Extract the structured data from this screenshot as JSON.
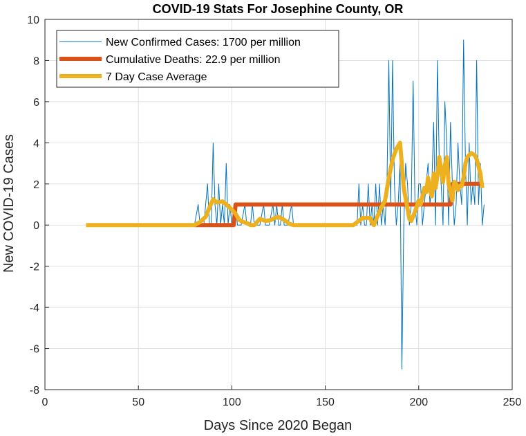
{
  "chart_data": {
    "type": "line",
    "title": "COVID-19 Stats For Josephine County, OR",
    "xlabel": "Days Since 2020 Began",
    "ylabel": "New COVID-19 Cases",
    "xlim": [
      0,
      250
    ],
    "ylim": [
      -8,
      10
    ],
    "xticks": [
      0,
      50,
      100,
      150,
      200,
      250
    ],
    "yticks": [
      -8,
      -6,
      -4,
      -2,
      0,
      2,
      4,
      6,
      8,
      10
    ],
    "grid": true,
    "legend_position": "top-left",
    "series": [
      {
        "name": "New Confirmed Cases: 1700 per million",
        "color": "#0072BD",
        "line": "thin",
        "points": [
          [
            22,
            0
          ],
          [
            80,
            0
          ],
          [
            82,
            1
          ],
          [
            83,
            0
          ],
          [
            85,
            0
          ],
          [
            87,
            2
          ],
          [
            88,
            0
          ],
          [
            89,
            0
          ],
          [
            90,
            4
          ],
          [
            91,
            1
          ],
          [
            92,
            0
          ],
          [
            93,
            2
          ],
          [
            94,
            0
          ],
          [
            95,
            1
          ],
          [
            96,
            0
          ],
          [
            97,
            3
          ],
          [
            98,
            0
          ],
          [
            99,
            1
          ],
          [
            100,
            0
          ],
          [
            101,
            0
          ],
          [
            102,
            1
          ],
          [
            103,
            0
          ],
          [
            105,
            0
          ],
          [
            107,
            1
          ],
          [
            108,
            0
          ],
          [
            110,
            0
          ],
          [
            111,
            1
          ],
          [
            112,
            0
          ],
          [
            115,
            0
          ],
          [
            117,
            1
          ],
          [
            118,
            0
          ],
          [
            120,
            0
          ],
          [
            122,
            1
          ],
          [
            123,
            0
          ],
          [
            124,
            1
          ],
          [
            125,
            0
          ],
          [
            126,
            0
          ],
          [
            127,
            1
          ],
          [
            128,
            0
          ],
          [
            130,
            0
          ],
          [
            132,
            1
          ],
          [
            133,
            0
          ],
          [
            140,
            0
          ],
          [
            150,
            0
          ],
          [
            160,
            0
          ],
          [
            167,
            0
          ],
          [
            168,
            2
          ],
          [
            169,
            0
          ],
          [
            170,
            1
          ],
          [
            171,
            0
          ],
          [
            172,
            0
          ],
          [
            173,
            2
          ],
          [
            174,
            0
          ],
          [
            175,
            1
          ],
          [
            176,
            0
          ],
          [
            177,
            2
          ],
          [
            178,
            0
          ],
          [
            179,
            2
          ],
          [
            180,
            0
          ],
          [
            181,
            1
          ],
          [
            182,
            0
          ],
          [
            183,
            2
          ],
          [
            184,
            8
          ],
          [
            185,
            1
          ],
          [
            186,
            8
          ],
          [
            187,
            2
          ],
          [
            188,
            0
          ],
          [
            189,
            1
          ],
          [
            190,
            3
          ],
          [
            191,
            -7
          ],
          [
            192,
            0
          ],
          [
            193,
            3
          ],
          [
            194,
            2
          ],
          [
            195,
            0
          ],
          [
            196,
            1
          ],
          [
            197,
            7
          ],
          [
            198,
            1
          ],
          [
            199,
            0
          ],
          [
            200,
            2
          ],
          [
            201,
            2
          ],
          [
            202,
            0
          ],
          [
            203,
            1
          ],
          [
            204,
            2
          ],
          [
            205,
            3
          ],
          [
            206,
            1
          ],
          [
            207,
            2
          ],
          [
            208,
            5
          ],
          [
            209,
            0
          ],
          [
            210,
            8
          ],
          [
            211,
            3
          ],
          [
            212,
            2
          ],
          [
            213,
            0
          ],
          [
            214,
            6
          ],
          [
            215,
            4
          ],
          [
            216,
            0
          ],
          [
            217,
            5
          ],
          [
            218,
            2
          ],
          [
            219,
            0
          ],
          [
            220,
            1
          ],
          [
            221,
            4
          ],
          [
            222,
            2
          ],
          [
            223,
            1
          ],
          [
            224,
            9
          ],
          [
            225,
            3
          ],
          [
            226,
            0
          ],
          [
            227,
            4
          ],
          [
            228,
            1
          ],
          [
            229,
            2
          ],
          [
            230,
            1
          ],
          [
            231,
            8
          ],
          [
            232,
            1
          ],
          [
            233,
            3
          ],
          [
            234,
            0
          ],
          [
            235,
            1
          ]
        ]
      },
      {
        "name": "Cumulative Deaths: 22.9 per million",
        "color": "#D95319",
        "line": "thick",
        "points": [
          [
            80,
            0
          ],
          [
            101,
            0
          ],
          [
            102,
            1
          ],
          [
            217,
            1
          ],
          [
            218,
            2
          ],
          [
            234,
            2
          ]
        ]
      },
      {
        "name": "7 Day Case Average",
        "color": "#EDB120",
        "line": "thick",
        "points": [
          [
            22,
            0
          ],
          [
            80,
            0
          ],
          [
            83,
            0.15
          ],
          [
            86,
            0.4
          ],
          [
            88,
            0.85
          ],
          [
            90,
            1.25
          ],
          [
            92,
            1.1
          ],
          [
            95,
            1.15
          ],
          [
            97,
            1.0
          ],
          [
            100,
            0.75
          ],
          [
            102,
            0.55
          ],
          [
            104,
            0.25
          ],
          [
            106,
            0.15
          ],
          [
            108,
            0.1
          ],
          [
            110,
            0
          ],
          [
            112,
            0
          ],
          [
            115,
            0.3
          ],
          [
            118,
            0.2
          ],
          [
            121,
            0.25
          ],
          [
            123,
            0.35
          ],
          [
            125,
            0.4
          ],
          [
            128,
            0.25
          ],
          [
            131,
            0.05
          ],
          [
            133,
            0
          ],
          [
            150,
            0
          ],
          [
            165,
            0
          ],
          [
            170,
            0.35
          ],
          [
            174,
            0.35
          ],
          [
            175,
            0.1
          ],
          [
            176,
            0
          ],
          [
            178,
            0.45
          ],
          [
            180,
            0.85
          ],
          [
            182,
            1.2
          ],
          [
            184,
            2.3
          ],
          [
            186,
            3.2
          ],
          [
            188,
            3.7
          ],
          [
            190,
            4.0
          ],
          [
            191,
            2.9
          ],
          [
            192,
            1.8
          ],
          [
            193,
            1.3
          ],
          [
            195,
            0.3
          ],
          [
            196,
            0.2
          ],
          [
            198,
            0.65
          ],
          [
            200,
            1.2
          ],
          [
            201,
            1.0
          ],
          [
            203,
            1.8
          ],
          [
            204,
            1.6
          ],
          [
            205,
            2.3
          ],
          [
            206,
            1.7
          ],
          [
            207,
            1.4
          ],
          [
            208,
            2.5
          ],
          [
            209,
            1.8
          ],
          [
            210,
            2.4
          ],
          [
            211,
            3.3
          ],
          [
            212,
            2.7
          ],
          [
            213,
            2.1
          ],
          [
            214,
            2.9
          ],
          [
            215,
            3.3
          ],
          [
            216,
            2.0
          ],
          [
            217,
            1.6
          ],
          [
            218,
            1.2
          ],
          [
            219,
            2.1
          ],
          [
            220,
            2.0
          ],
          [
            221,
            1.7
          ],
          [
            222,
            1.9
          ],
          [
            223,
            1.9
          ],
          [
            224,
            2.3
          ],
          [
            225,
            3.0
          ],
          [
            226,
            3.3
          ],
          [
            228,
            3.5
          ],
          [
            230,
            3.4
          ],
          [
            231,
            3.2
          ],
          [
            233,
            2.5
          ],
          [
            234,
            1.8
          ]
        ]
      }
    ]
  }
}
